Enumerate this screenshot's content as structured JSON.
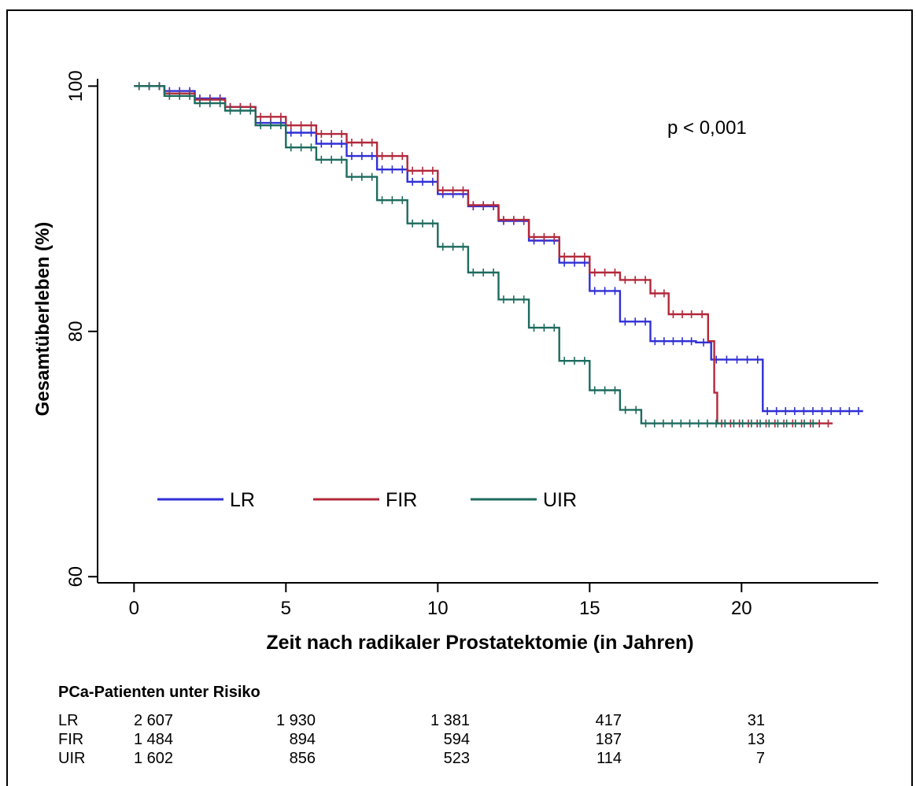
{
  "chart_data": {
    "type": "line",
    "subtype": "kaplan-meier",
    "xlabel": "Zeit nach radikaler Prostatektomie (in Jahren)",
    "ylabel": "Gesamtüberleben (%)",
    "xlim": [
      -1.2,
      24.5
    ],
    "ylim": [
      59.5,
      100.6
    ],
    "xticks": [
      0,
      5,
      10,
      15,
      20
    ],
    "yticks": [
      60,
      80,
      100
    ],
    "annotation": "p < 0,001",
    "legend_position": "middle-left",
    "series": [
      {
        "name": "LR",
        "color": "#2f2fd6",
        "points": [
          [
            0,
            100
          ],
          [
            1,
            99.6
          ],
          [
            2,
            99
          ],
          [
            3,
            98.3
          ],
          [
            4,
            97
          ],
          [
            5,
            96.2
          ],
          [
            6,
            95.3
          ],
          [
            7,
            94.3
          ],
          [
            8,
            93.2
          ],
          [
            9,
            92.2
          ],
          [
            10,
            91.2
          ],
          [
            11,
            90.2
          ],
          [
            12,
            89
          ],
          [
            13,
            87.4
          ],
          [
            14,
            85.6
          ],
          [
            15,
            83.3
          ],
          [
            16,
            80.8
          ],
          [
            17,
            79.2
          ],
          [
            18.5,
            79.1
          ],
          [
            19,
            77.7
          ],
          [
            20.7,
            77.7
          ],
          [
            20.7,
            73.5
          ],
          [
            24,
            73.5
          ]
        ]
      },
      {
        "name": "FIR",
        "color": "#b3283a",
        "points": [
          [
            0,
            100
          ],
          [
            1,
            99.4
          ],
          [
            2,
            98.9
          ],
          [
            3,
            98.3
          ],
          [
            4,
            97.5
          ],
          [
            5,
            96.8
          ],
          [
            6,
            96.1
          ],
          [
            7,
            95.4
          ],
          [
            8,
            94.3
          ],
          [
            9,
            93.1
          ],
          [
            10,
            91.5
          ],
          [
            11,
            90.3
          ],
          [
            12,
            89.1
          ],
          [
            13,
            87.7
          ],
          [
            14,
            86.1
          ],
          [
            15,
            84.8
          ],
          [
            16,
            84.2
          ],
          [
            17,
            83.1
          ],
          [
            17.6,
            81.4
          ],
          [
            18.5,
            81.4
          ],
          [
            18.9,
            79.2
          ],
          [
            19.1,
            75
          ],
          [
            19.2,
            72.5
          ],
          [
            23,
            72.5
          ]
        ]
      },
      {
        "name": "UIR",
        "color": "#1d6b5e",
        "points": [
          [
            0,
            100
          ],
          [
            1,
            99.2
          ],
          [
            2,
            98.6
          ],
          [
            3,
            98
          ],
          [
            4,
            96.8
          ],
          [
            5,
            95
          ],
          [
            6,
            94
          ],
          [
            7,
            92.6
          ],
          [
            8,
            90.7
          ],
          [
            9,
            88.8
          ],
          [
            10,
            86.9
          ],
          [
            11,
            84.8
          ],
          [
            12,
            82.6
          ],
          [
            13,
            80.3
          ],
          [
            14,
            77.6
          ],
          [
            15,
            75.2
          ],
          [
            16,
            73.6
          ],
          [
            16.7,
            72.5
          ],
          [
            22.5,
            72.5
          ]
        ]
      }
    ]
  },
  "risk_table": {
    "title": "PCa-Patienten unter Risiko",
    "rows": [
      {
        "label": "LR",
        "values": [
          "2 607",
          "1 930",
          "1 381",
          "417",
          "31"
        ]
      },
      {
        "label": "FIR",
        "values": [
          "1 484",
          "894",
          "594",
          "187",
          "13"
        ]
      },
      {
        "label": "UIR",
        "values": [
          "1 602",
          "856",
          "523",
          "114",
          "7"
        ]
      }
    ]
  }
}
